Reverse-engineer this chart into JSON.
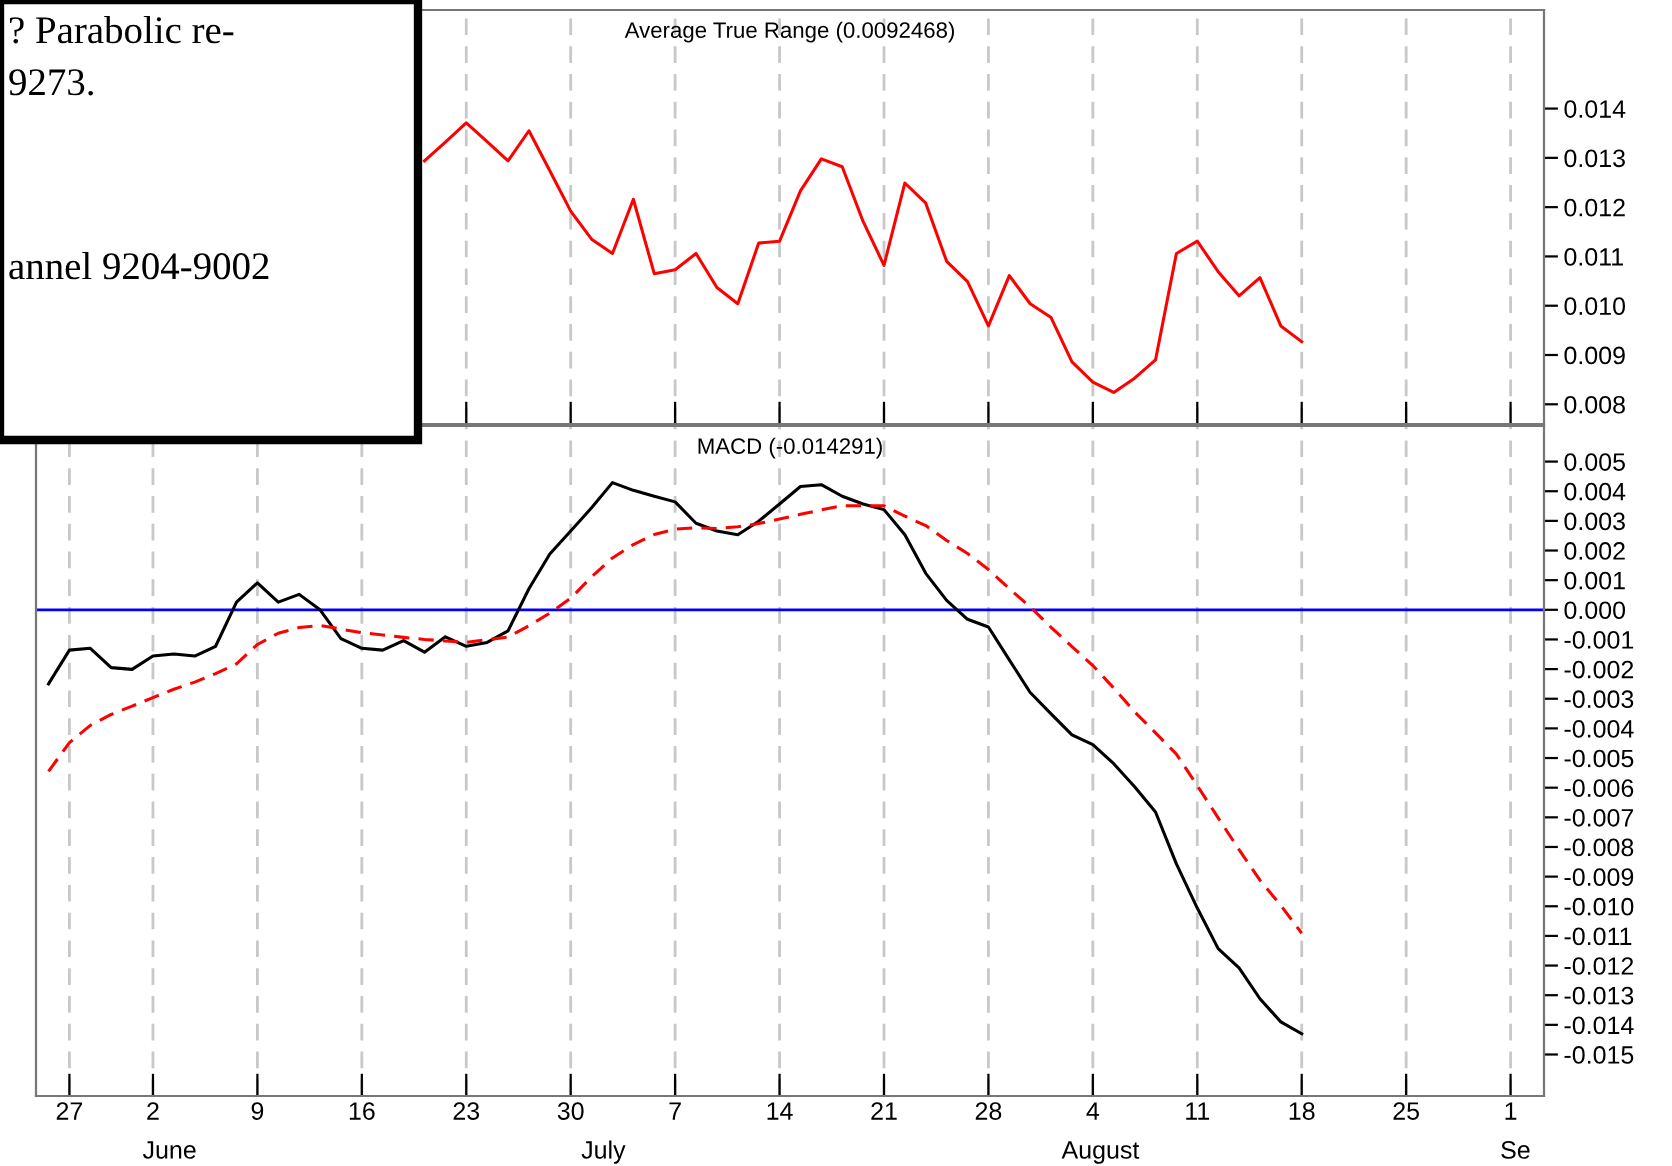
{
  "chart_data": [
    {
      "type": "line",
      "title": "Average True Range (0.0092468)",
      "annotations": [
        "? Parabolic re-",
        "9273.",
        "annel 9204-9002"
      ],
      "categories": [
        null,
        "27",
        null,
        null,
        null,
        "2",
        null,
        null,
        null,
        null,
        "9",
        null,
        null,
        null,
        null,
        "16",
        null,
        null,
        null,
        null,
        "23",
        null,
        null,
        null,
        null,
        "30",
        null,
        null,
        null,
        null,
        "7",
        null,
        null,
        null,
        null,
        "14",
        null,
        null,
        null,
        null,
        "21",
        null,
        null,
        null,
        null,
        "28",
        null,
        null,
        null,
        null,
        "4",
        null,
        null,
        null,
        null,
        "11",
        null,
        null,
        null,
        null,
        "18",
        null,
        null,
        null,
        null,
        "25",
        null,
        null,
        null,
        null,
        "1",
        null
      ],
      "series": [
        {
          "color": "#ff0000",
          "line_style": "solid",
          "values": [
            null,
            null,
            null,
            null,
            null,
            null,
            null,
            null,
            null,
            null,
            null,
            null,
            null,
            null,
            null,
            null,
            null,
            null,
            0.01294,
            0.01332,
            0.01371,
            0.01333,
            0.01294,
            0.01355,
            0.01274,
            0.01192,
            0.01135,
            0.01106,
            0.01216,
            0.01065,
            0.01073,
            0.01106,
            0.01037,
            0.01004,
            0.01127,
            0.01131,
            0.01233,
            0.01298,
            0.01282,
            0.01171,
            0.01082,
            0.01249,
            0.01208,
            0.0109,
            0.01049,
            0.00959,
            0.01061,
            0.01004,
            0.00976,
            0.00886,
            0.00845,
            0.00824,
            0.00853,
            0.0089,
            0.01106,
            0.01131,
            0.01069,
            0.0102,
            0.01057,
            0.00959,
            0.00927,
            null,
            null,
            null,
            null,
            null,
            null,
            null,
            null,
            null,
            null,
            null
          ]
        }
      ],
      "ylim": [
        0.0076,
        0.016
      ],
      "yticks": [
        0.008,
        0.009,
        {
          "value": 0.01,
          "label": "0.010"
        },
        0.011,
        0.012,
        0.013,
        0.014
      ],
      "grid": "x",
      "tick_labels": "y"
    },
    {
      "type": "line",
      "title": "MACD (-0.014291)",
      "annotations": [
        "June",
        "July",
        "August",
        "Se"
      ],
      "categories": [
        null,
        "27",
        null,
        null,
        null,
        "2",
        null,
        null,
        null,
        null,
        "9",
        null,
        null,
        null,
        null,
        "16",
        null,
        null,
        null,
        null,
        "23",
        null,
        null,
        null,
        null,
        "30",
        null,
        null,
        null,
        null,
        "7",
        null,
        null,
        null,
        null,
        "14",
        null,
        null,
        null,
        null,
        "21",
        null,
        null,
        null,
        null,
        "28",
        null,
        null,
        null,
        null,
        "4",
        null,
        null,
        null,
        null,
        "11",
        null,
        null,
        null,
        null,
        "18",
        null,
        null,
        null,
        null,
        "25",
        null,
        null,
        null,
        null,
        "1",
        null
      ],
      "series": [
        {
          "color": "#000000",
          "line_style": "solid",
          "values": [
            -0.0025,
            -0.00136,
            -0.0013,
            -0.00195,
            -0.00201,
            -0.00156,
            -0.00149,
            -0.00156,
            -0.00123,
            0.00026,
            0.00091,
            0.00026,
            0.00052,
            0.0,
            -0.00097,
            -0.0013,
            -0.00136,
            -0.00104,
            -0.00143,
            -0.00091,
            -0.00123,
            -0.0011,
            -0.00071,
            0.00071,
            0.00188,
            0.00266,
            0.00344,
            0.00429,
            0.00403,
            0.00383,
            0.00364,
            0.00292,
            0.00266,
            0.00253,
            0.00299,
            0.00357,
            0.00416,
            0.00422,
            0.00383,
            0.00357,
            0.00338,
            0.00253,
            0.00123,
            0.00032,
            -0.00032,
            -0.00058,
            -0.00169,
            -0.00279,
            -0.00351,
            -0.00422,
            -0.00455,
            -0.00519,
            -0.00597,
            -0.00682,
            -0.00857,
            -0.01006,
            -0.01143,
            -0.01208,
            -0.01312,
            -0.0139,
            -0.0143,
            null,
            null,
            null,
            null,
            null,
            null,
            null,
            null,
            null,
            null,
            null
          ]
        },
        {
          "color": "#ff0000",
          "line_style": "dashed",
          "values": [
            -0.00545,
            -0.00448,
            -0.0039,
            -0.00353,
            -0.00325,
            -0.00296,
            -0.00268,
            -0.00244,
            -0.00215,
            -0.00182,
            -0.00117,
            -0.00079,
            -0.0006,
            -0.00053,
            -0.00065,
            -0.00077,
            -0.00085,
            -0.00093,
            -0.001,
            -0.00105,
            -0.0011,
            -0.00101,
            -0.00092,
            -0.00054,
            -0.00011,
            0.00039,
            0.00111,
            0.00175,
            0.0022,
            0.00254,
            0.00272,
            0.00277,
            0.00274,
            0.0028,
            0.00291,
            0.00306,
            0.00322,
            0.00337,
            0.00351,
            0.00351,
            0.00351,
            0.00316,
            0.00284,
            0.00234,
            0.0019,
            0.00136,
            0.00071,
            0.0001,
            -0.00059,
            -0.00124,
            -0.00188,
            -0.00264,
            -0.00344,
            -0.00415,
            -0.00487,
            -0.00593,
            -0.00702,
            -0.00809,
            -0.00912,
            -0.00997,
            -0.01091,
            null,
            null,
            null,
            null,
            null,
            null,
            null,
            null,
            null,
            null,
            null
          ]
        }
      ],
      "ref_lines": [
        {
          "axis": "y",
          "value": 0,
          "color": "#0000ff"
        }
      ],
      "ylim": [
        -0.0164,
        0.0062
      ],
      "yticks": [
        0.005,
        0.004,
        0.003,
        0.002,
        0.001,
        {
          "value": 0,
          "label": "0.000"
        },
        -0.001,
        -0.002,
        -0.003,
        -0.004,
        -0.005,
        -0.006,
        -0.007,
        -0.008,
        -0.009,
        {
          "value": -0.01,
          "label": "-0.010"
        },
        -0.011,
        -0.012,
        -0.013,
        -0.014,
        -0.015
      ],
      "grid": "x"
    }
  ]
}
